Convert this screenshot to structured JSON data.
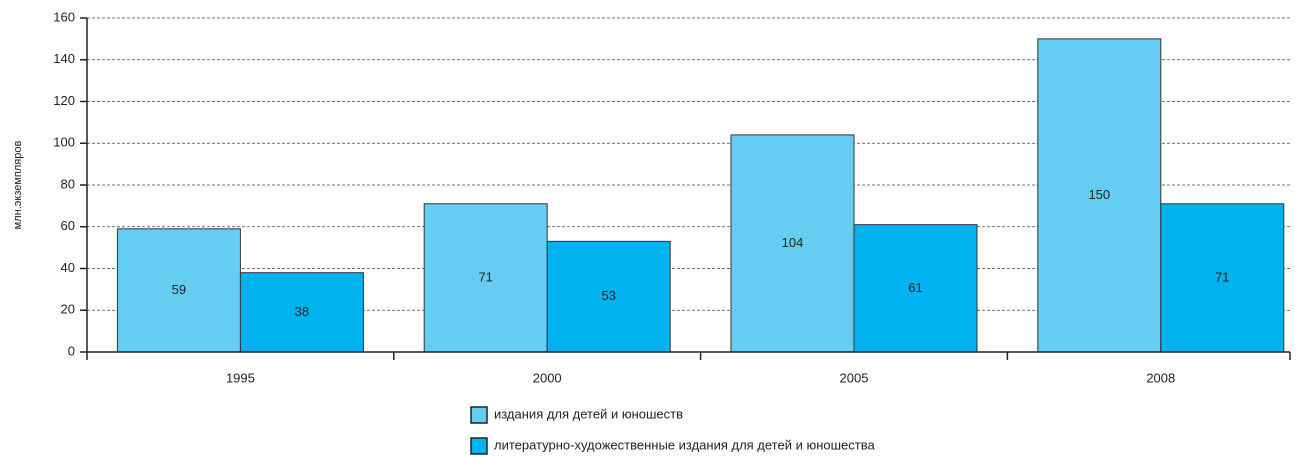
{
  "chart_data": {
    "type": "bar",
    "y_label": "млн.экземпляров",
    "categories": [
      "1995",
      "2000",
      "2005",
      "2008"
    ],
    "series": [
      {
        "name": "издания для детей и юношеств",
        "color": "#66cdf2",
        "values": [
          59,
          71,
          104,
          150
        ]
      },
      {
        "name": "литературно-художественные издания для детей и юношества",
        "color": "#00b2ef",
        "values": [
          38,
          53,
          61,
          71
        ]
      }
    ],
    "ylim": [
      0,
      160
    ],
    "yticks": [
      0,
      20,
      40,
      60,
      80,
      100,
      120,
      140,
      160
    ],
    "grid": true,
    "legend": "bottom"
  }
}
